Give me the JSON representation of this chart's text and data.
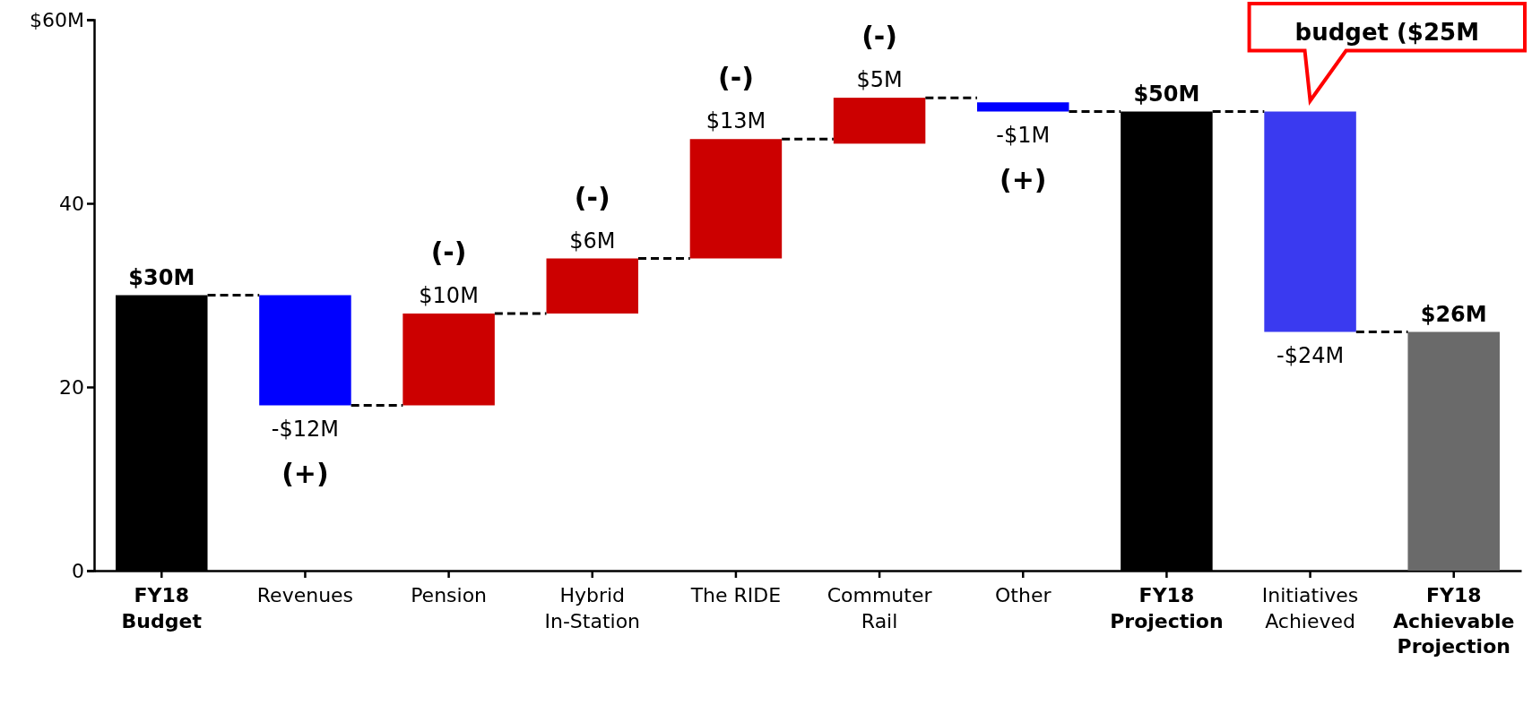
{
  "chart_data": {
    "type": "bar",
    "categories": [
      "FY18 Budget",
      "Revenues",
      "Pension",
      "Hybrid In-Station",
      "The RIDE",
      "Commuter Rail",
      "Other",
      "FY18 Projection",
      "Initiatives Achieved",
      "FY18 Achievable Projection"
    ],
    "values": [
      30,
      -12,
      10,
      6,
      13,
      5,
      -1,
      50,
      -24,
      26
    ],
    "base": [
      0,
      30,
      18,
      28,
      34,
      46.5,
      51,
      0,
      50,
      0
    ],
    "colors": [
      "#000000",
      "#0000ff",
      "#cc0000",
      "#cc0000",
      "#cc0000",
      "#cc0000",
      "#0000ff",
      "#000000",
      "#3a3af0",
      "#6a6a6a"
    ],
    "value_labels": [
      "$30M",
      "-$12M",
      "$10M",
      "$6M",
      "$13M",
      "$5M",
      "-$1M",
      "$50M",
      "-$24M",
      "$26M"
    ],
    "ylim": [
      0,
      60
    ],
    "yticks": [
      0,
      20,
      40,
      {
        "value": 60,
        "label": "$60M"
      }
    ],
    "grid": false,
    "annotations": [
      {
        "text": "(+)",
        "x": "Revenues",
        "y": 18
      },
      {
        "text": "(-)",
        "x": "Pension",
        "y": 28
      },
      {
        "text": "(-)",
        "x": "Hybrid In-Station",
        "y": 34
      },
      {
        "text": "(-)",
        "x": "The RIDE",
        "y": 47
      },
      {
        "text": "(-)",
        "x": "Commuter Rail",
        "y": 51.5
      },
      {
        "text": "(+)",
        "x": "Other",
        "y": 50
      },
      {
        "text": "budget ($25M",
        "x": "Initiatives Achieved",
        "y": 50
      }
    ]
  }
}
